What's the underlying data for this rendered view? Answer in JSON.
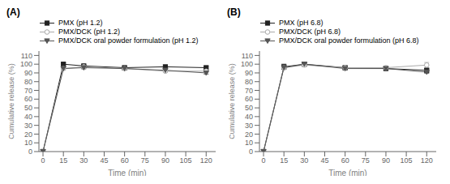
{
  "chart_data": [
    {
      "type": "line",
      "title": "(A)",
      "x": [
        0,
        15,
        30,
        60,
        90,
        120
      ],
      "xlabel": "Time (min)",
      "ylabel": "Cumulative release (%)",
      "xlim": [
        -3,
        127
      ],
      "xticks": [
        0,
        15,
        30,
        45,
        60,
        75,
        90,
        105,
        120
      ],
      "ylim": [
        0,
        115
      ],
      "yticks": [
        0,
        10,
        20,
        30,
        40,
        50,
        60,
        70,
        80,
        90,
        100,
        110
      ],
      "grid": false,
      "legend": "upper left",
      "series": [
        {
          "name": "PMX (pH 1.2)",
          "color": "#222222",
          "marker": "square",
          "line_style": "solid",
          "values": [
            0,
            100,
            98,
            96,
            97,
            96
          ],
          "err": [
            0,
            1.5,
            1.5,
            2.0,
            1.5,
            1.5
          ]
        },
        {
          "name": "PMX/DCK (pH 1.2)",
          "color": "#aaaaaa",
          "marker": "circle-open",
          "line_style": "solid",
          "values": [
            0,
            95,
            97,
            95,
            92,
            92
          ],
          "err": [
            0,
            1.5,
            1.2,
            1.5,
            1.5,
            2.0
          ]
        },
        {
          "name": "PMX/DCK oral powder formulation (pH 1.2)",
          "color": "#555555",
          "marker": "triangle-down",
          "line_style": "solid",
          "values": [
            0,
            95,
            96,
            95,
            93,
            90
          ],
          "err": [
            0,
            1.2,
            1.5,
            1.5,
            1.5,
            1.5
          ]
        }
      ]
    },
    {
      "type": "line",
      "title": "(B)",
      "x": [
        0,
        15,
        30,
        60,
        90,
        120
      ],
      "xlabel": "Time (min)",
      "ylabel": "Cumulative release (%)",
      "xlim": [
        -3,
        127
      ],
      "xticks": [
        0,
        15,
        30,
        45,
        60,
        75,
        90,
        105,
        120
      ],
      "ylim": [
        0,
        115
      ],
      "yticks": [
        0,
        10,
        20,
        30,
        40,
        50,
        60,
        70,
        80,
        90,
        100,
        110
      ],
      "grid": false,
      "legend": "upper left",
      "series": [
        {
          "name": "PMX (pH 6.8)",
          "color": "#222222",
          "marker": "square",
          "line_style": "solid",
          "values": [
            0,
            97,
            100,
            96,
            95,
            93
          ],
          "err": [
            0,
            3.0,
            1.5,
            2.0,
            1.5,
            2.0
          ]
        },
        {
          "name": "PMX/DCK (pH 6.8)",
          "color": "#aaaaaa",
          "marker": "circle-open",
          "line_style": "solid",
          "values": [
            0,
            96,
            99,
            96,
            96,
            99
          ],
          "err": [
            0,
            1.5,
            1.5,
            1.5,
            1.5,
            3.0
          ]
        },
        {
          "name": "PMX/DCK oral powder formulation (pH 6.8)",
          "color": "#555555",
          "marker": "triangle-down",
          "line_style": "solid",
          "values": [
            0,
            96,
            100,
            95,
            95,
            91
          ],
          "err": [
            0,
            1.2,
            1.5,
            1.5,
            1.5,
            1.5
          ]
        }
      ]
    }
  ]
}
